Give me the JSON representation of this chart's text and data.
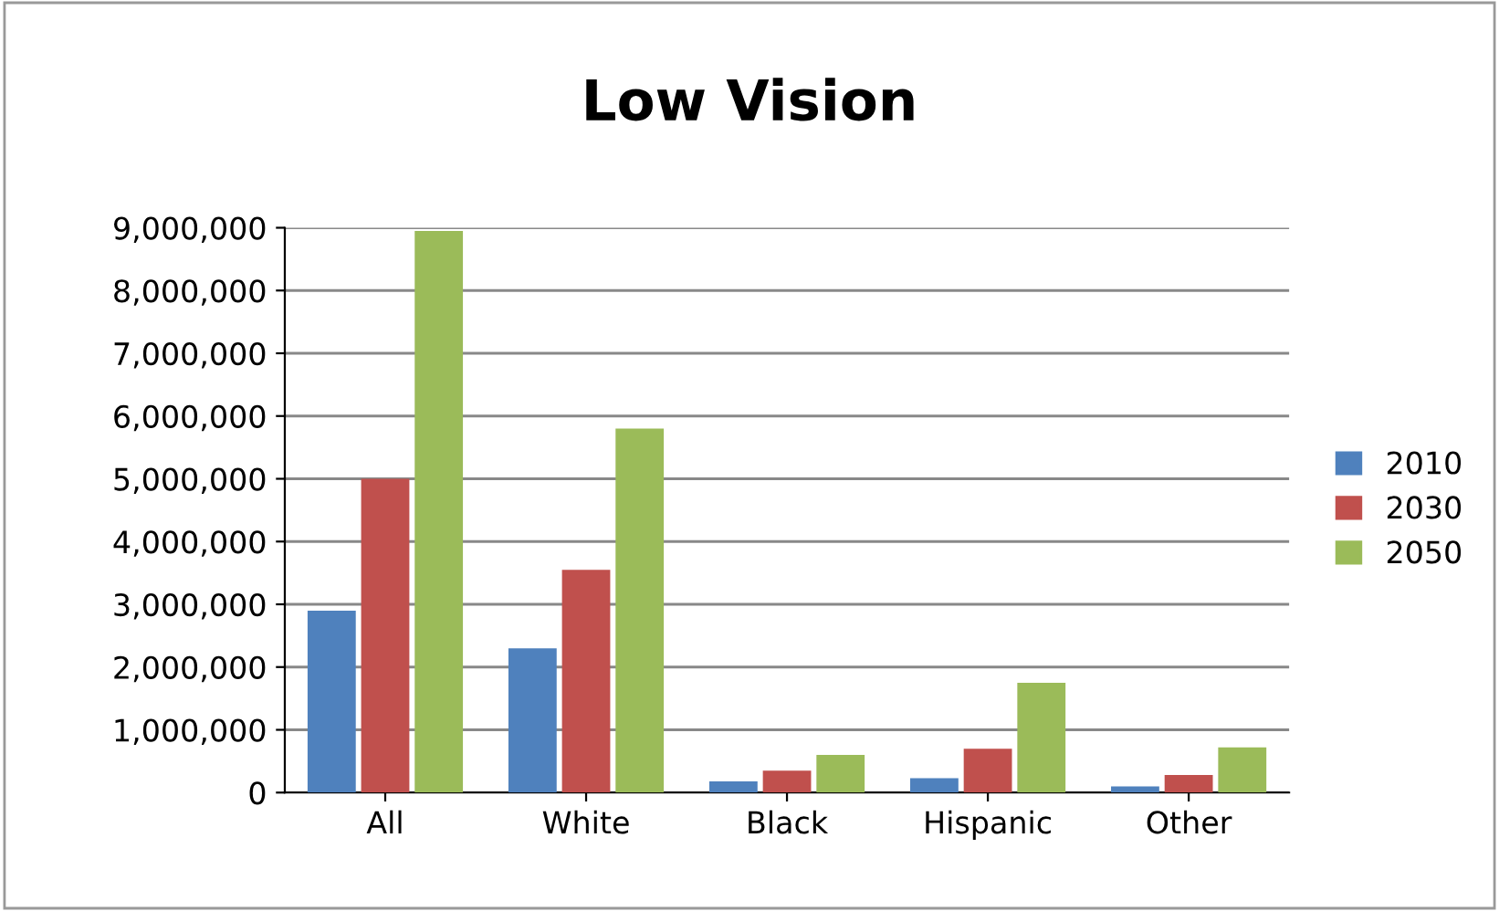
{
  "chart_data": {
    "type": "bar",
    "title": "Low Vision",
    "categories": [
      "All",
      "White",
      "Black",
      "Hispanic",
      "Other"
    ],
    "series": [
      {
        "name": "2010",
        "color": "#4f81bd",
        "values": [
          2900000,
          2300000,
          180000,
          230000,
          100000
        ]
      },
      {
        "name": "2030",
        "color": "#c0504d",
        "values": [
          5000000,
          3550000,
          350000,
          700000,
          280000
        ]
      },
      {
        "name": "2050",
        "color": "#9bbb59",
        "values": [
          8950000,
          5800000,
          600000,
          1750000,
          720000
        ]
      }
    ],
    "ylim": [
      0,
      9000000
    ],
    "yticks": [
      {
        "value": 0,
        "label": "0"
      },
      {
        "value": 1000000,
        "label": "1,000,000"
      },
      {
        "value": 2000000,
        "label": "2,000,000"
      },
      {
        "value": 3000000,
        "label": "3,000,000"
      },
      {
        "value": 4000000,
        "label": "4,000,000"
      },
      {
        "value": 5000000,
        "label": "5,000,000"
      },
      {
        "value": 6000000,
        "label": "6,000,000"
      },
      {
        "value": 7000000,
        "label": "7,000,000"
      },
      {
        "value": 8000000,
        "label": "8,000,000"
      },
      {
        "value": 9000000,
        "label": "9,000,000"
      }
    ],
    "grid": "y",
    "legend": "right"
  }
}
